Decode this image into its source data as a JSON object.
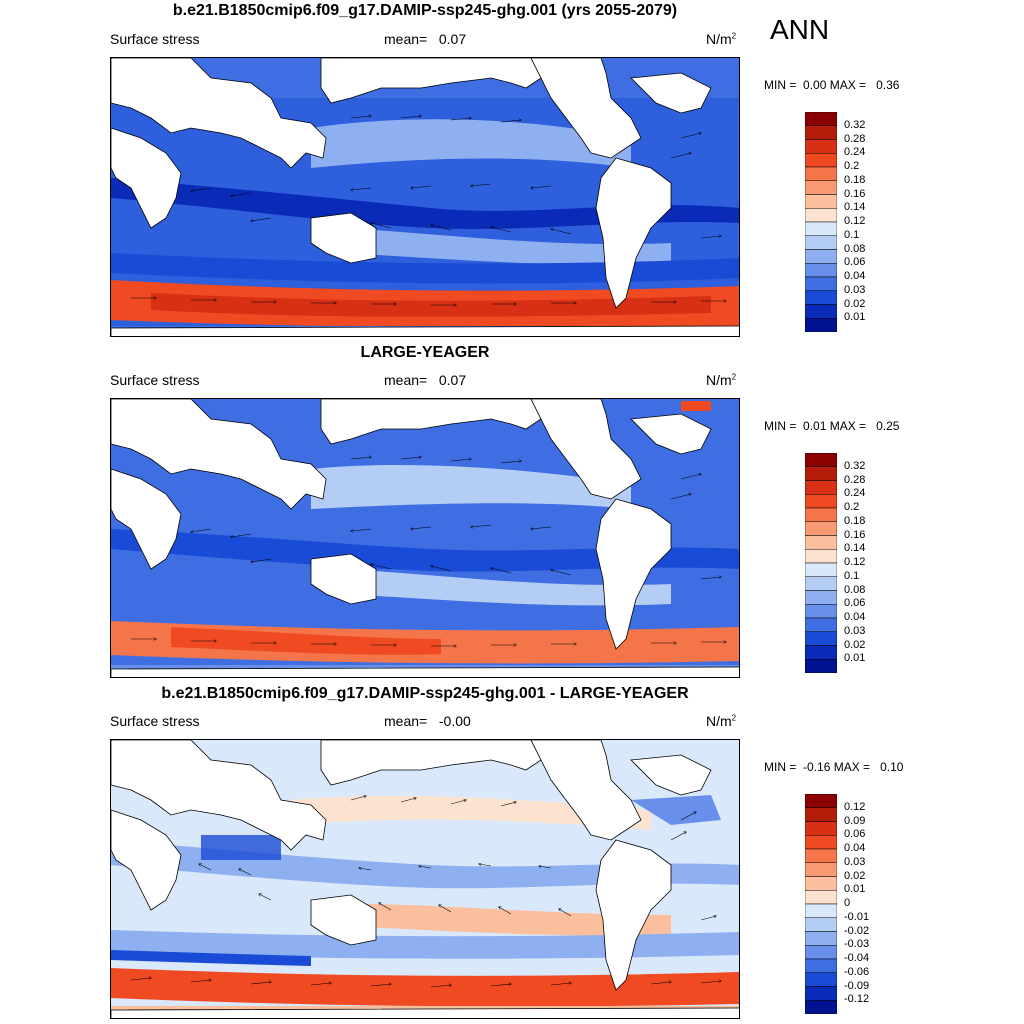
{
  "season": "ANN",
  "panels": [
    {
      "title": "b.e21.B1850cmip6.f09_g17.DAMIP-ssp245-ghg.001 (yrs 2055-2079)",
      "variable": "Surface stress",
      "mean_label": "mean=",
      "mean_value": "0.07",
      "units_base": "N/m",
      "units_exp": "2",
      "min_label": "MIN =",
      "min_value": "0.00",
      "max_label": "MAX =",
      "max_value": "0.36",
      "colorbar": {
        "labels": [
          "0.32",
          "0.28",
          "0.24",
          "0.2",
          "0.18",
          "0.16",
          "0.14",
          "0.12",
          "0.1",
          "0.08",
          "0.06",
          "0.04",
          "0.03",
          "0.02",
          "0.01"
        ],
        "colors": [
          "#8b0000",
          "#b21e0a",
          "#d73015",
          "#f04a22",
          "#f5754a",
          "#f79a73",
          "#fbbf9e",
          "#fde3cf",
          "#d9e8fb",
          "#b4cdf4",
          "#8eaff0",
          "#6890ea",
          "#3f6ee3",
          "#1a4bd6",
          "#0a2bb8",
          "#001290"
        ]
      }
    },
    {
      "title": "LARGE-YEAGER",
      "variable": "Surface stress",
      "mean_label": "mean=",
      "mean_value": "0.07",
      "units_base": "N/m",
      "units_exp": "2",
      "min_label": "MIN =",
      "min_value": "0.01",
      "max_label": "MAX =",
      "max_value": "0.25",
      "colorbar": {
        "labels": [
          "0.32",
          "0.28",
          "0.24",
          "0.2",
          "0.18",
          "0.16",
          "0.14",
          "0.12",
          "0.1",
          "0.08",
          "0.06",
          "0.04",
          "0.03",
          "0.02",
          "0.01"
        ],
        "colors": [
          "#8b0000",
          "#b21e0a",
          "#d73015",
          "#f04a22",
          "#f5754a",
          "#f79a73",
          "#fbbf9e",
          "#fde3cf",
          "#d9e8fb",
          "#b4cdf4",
          "#8eaff0",
          "#6890ea",
          "#3f6ee3",
          "#1a4bd6",
          "#0a2bb8",
          "#001290"
        ]
      }
    },
    {
      "title": "b.e21.B1850cmip6.f09_g17.DAMIP-ssp245-ghg.001 - LARGE-YEAGER",
      "variable": "Surface stress",
      "mean_label": "mean=",
      "mean_value": "-0.00",
      "units_base": "N/m",
      "units_exp": "2",
      "min_label": "MIN =",
      "min_value": "-0.16",
      "max_label": "MAX =",
      "max_value": "0.10",
      "colorbar": {
        "labels": [
          "0.12",
          "0.09",
          "0.06",
          "0.04",
          "0.03",
          "0.02",
          "0.01",
          "0",
          "-0.01",
          "-0.02",
          "-0.03",
          "-0.04",
          "-0.06",
          "-0.09",
          "-0.12"
        ],
        "colors": [
          "#8b0000",
          "#b21e0a",
          "#d73015",
          "#f04a22",
          "#f5754a",
          "#f79a73",
          "#fbbf9e",
          "#fde3cf",
          "#d9e8fb",
          "#b4cdf4",
          "#8eaff0",
          "#6890ea",
          "#3f6ee3",
          "#1a4bd6",
          "#0a2bb8",
          "#001290"
        ]
      }
    }
  ]
}
